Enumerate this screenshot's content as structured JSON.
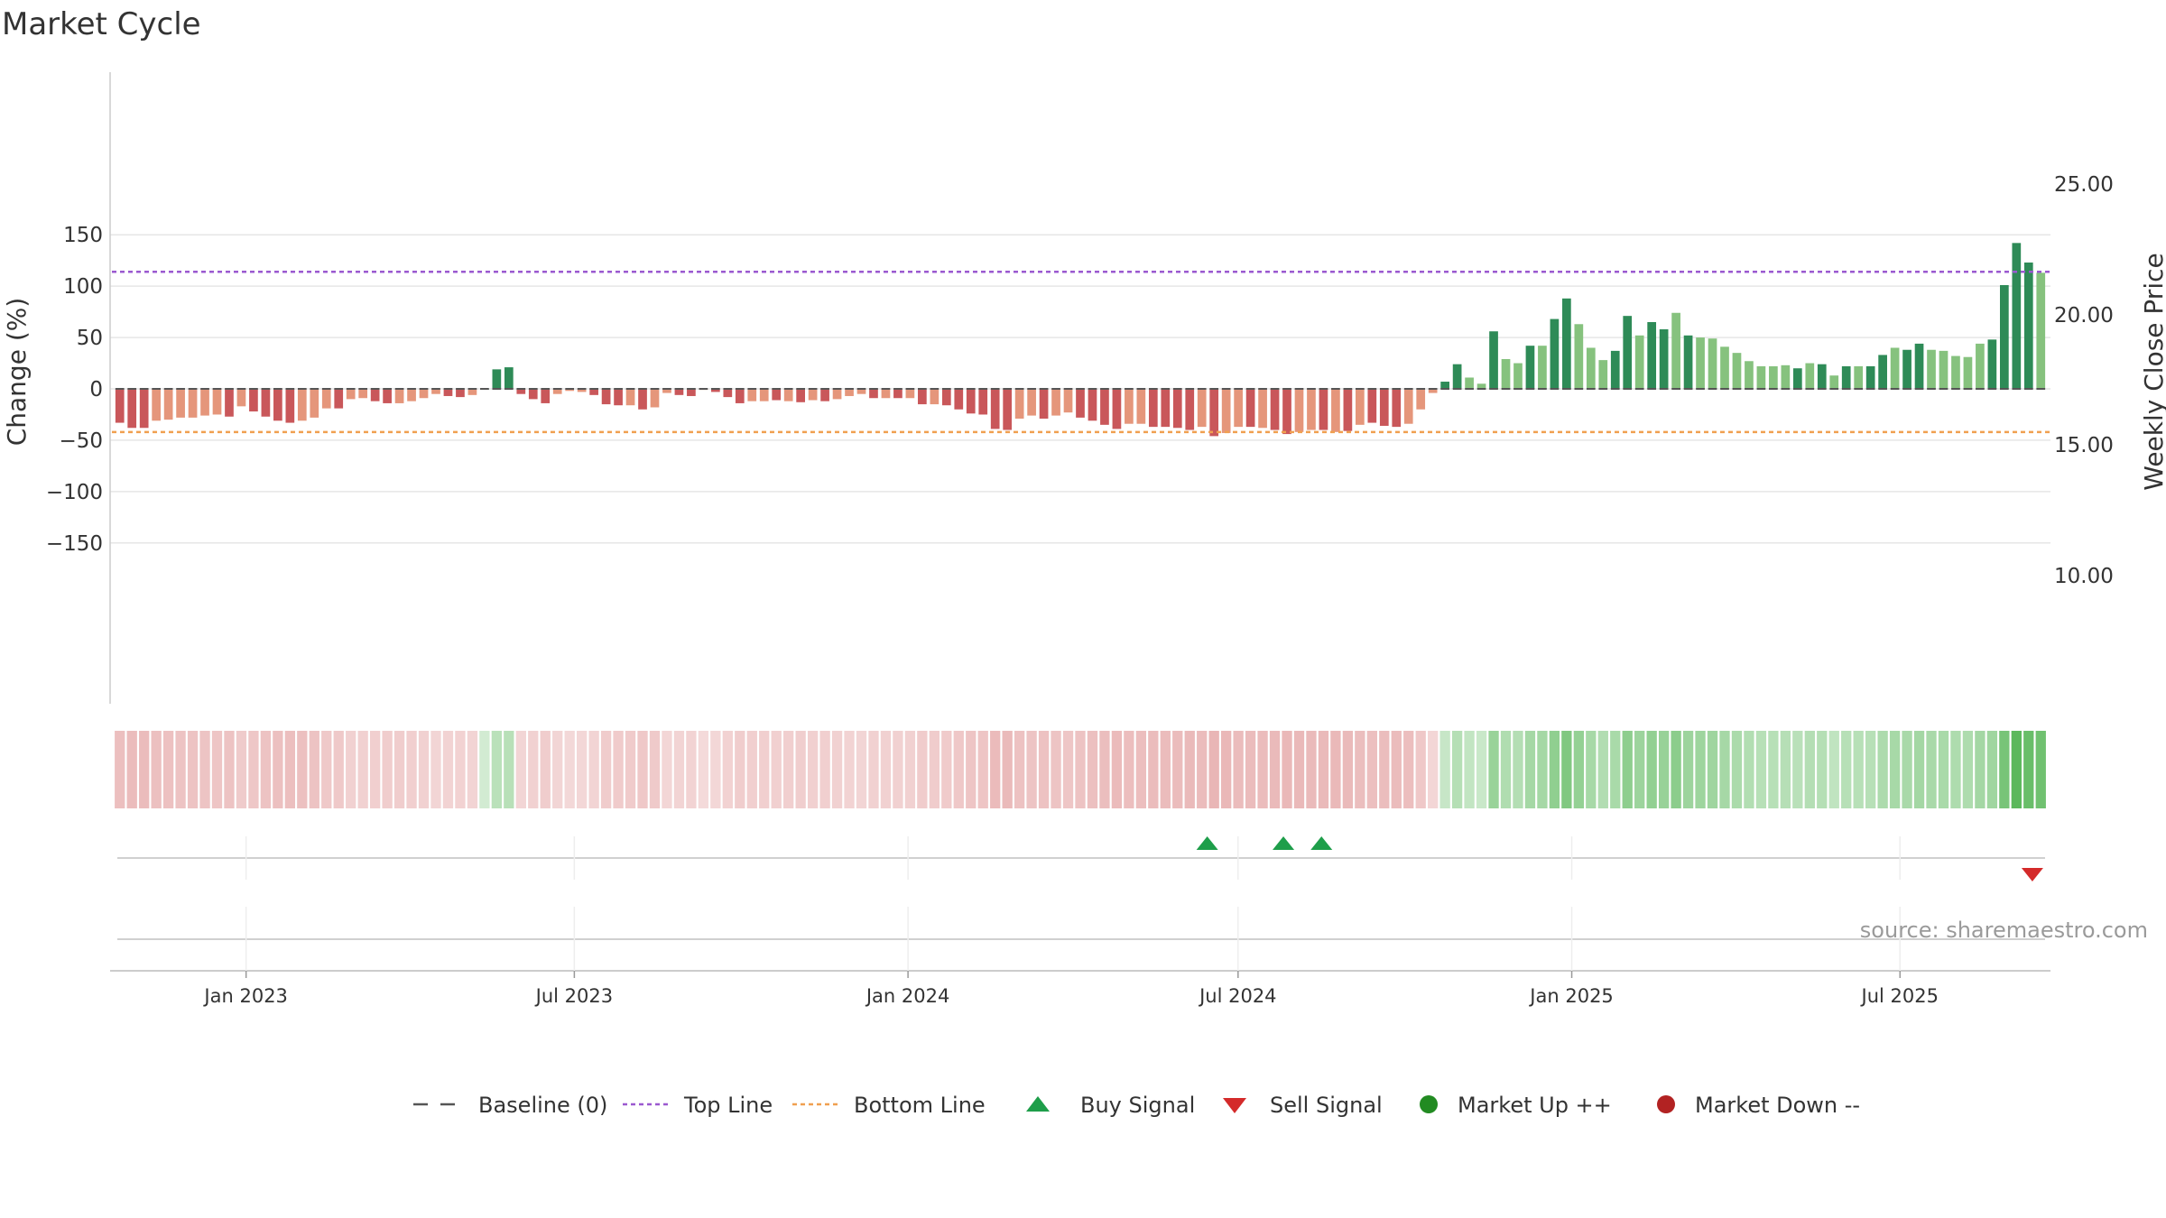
{
  "chart_data": {
    "type": "bar",
    "title": "Market Cycle",
    "ylabel": "Change (%)",
    "y2label": "Weekly Close Price",
    "ylim": [
      -150,
      150
    ],
    "y2ticks": [
      "25.00",
      "20.00",
      "15.00",
      "10.00"
    ],
    "yticks": [
      "150",
      "100",
      "50",
      "0",
      "−50",
      "−100",
      "−150"
    ],
    "top_line": 114,
    "bottom_line": -42,
    "grid": true,
    "x_tick_labels": [
      "Jan 2023",
      "Jul 2023",
      "Jan 2024",
      "Jul 2024",
      "Jan 2025",
      "Jul 2025"
    ],
    "x_start": "2022-10-21",
    "x_end": "2025-09-19",
    "series": [
      {
        "name": "Change (%)",
        "values": [
          -33,
          -38,
          -38,
          -31,
          -30,
          -28,
          -28,
          -26,
          -25,
          -27,
          -17,
          -22,
          -27,
          -31,
          -33,
          -31,
          -28,
          -19,
          -19,
          -10,
          -9,
          -12,
          -14,
          -14,
          -12,
          -9,
          -5,
          -7,
          -8,
          -6,
          0,
          19,
          21,
          -5,
          -10,
          -14,
          -5,
          -2,
          -3,
          -6,
          -15,
          -16,
          -16,
          -20,
          -18,
          -4,
          -6,
          -7,
          -1,
          -3,
          -8,
          -14,
          -12,
          -12,
          -11,
          -12,
          -13,
          -11,
          -12,
          -10,
          -7,
          -5,
          -9,
          -9,
          -9,
          -9,
          -15,
          -15,
          -16,
          -20,
          -24,
          -25,
          -39,
          -40,
          -29,
          -26,
          -29,
          -26,
          -23,
          -28,
          -31,
          -35,
          -39,
          -34,
          -34,
          -37,
          -37,
          -38,
          -40,
          -37,
          -46,
          -43,
          -37,
          -37,
          -38,
          -40,
          -44,
          -42,
          -40,
          -40,
          -42,
          -41,
          -35,
          -33,
          -36,
          -37,
          -34,
          -20,
          -4,
          7,
          24,
          11,
          5,
          56,
          29,
          25,
          42,
          42,
          68,
          88,
          63,
          40,
          28,
          37,
          71,
          52,
          65,
          58,
          74,
          52,
          50,
          49,
          41,
          35,
          27,
          22,
          22,
          23,
          20,
          25,
          24,
          13,
          22,
          22,
          22,
          33,
          40,
          38,
          44,
          38,
          37,
          32,
          31,
          44,
          48,
          101,
          142,
          123,
          113
        ],
        "bar_types": [
          "d",
          "d",
          "d",
          "l",
          "l",
          "l",
          "l",
          "l",
          "l",
          "d",
          "l",
          "d",
          "d",
          "d",
          "d",
          "l",
          "l",
          "l",
          "d",
          "l",
          "l",
          "d",
          "d",
          "l",
          "l",
          "l",
          "l",
          "d",
          "d",
          "l",
          "d",
          "d",
          "d",
          "d",
          "d",
          "d",
          "l",
          "l",
          "l",
          "d",
          "d",
          "d",
          "l",
          "d",
          "l",
          "l",
          "d",
          "d",
          "l",
          "d",
          "d",
          "d",
          "l",
          "l",
          "d",
          "l",
          "d",
          "l",
          "d",
          "l",
          "l",
          "l",
          "d",
          "l",
          "d",
          "l",
          "d",
          "l",
          "d",
          "d",
          "d",
          "d",
          "d",
          "d",
          "l",
          "l",
          "d",
          "l",
          "l",
          "d",
          "d",
          "d",
          "d",
          "l",
          "l",
          "d",
          "d",
          "d",
          "d",
          "l",
          "d",
          "l",
          "l",
          "d",
          "l",
          "d",
          "d",
          "l",
          "l",
          "d",
          "l",
          "d",
          "l",
          "d",
          "d",
          "d",
          "l",
          "l",
          "l",
          "d",
          "d",
          "l",
          "l",
          "d",
          "l",
          "l",
          "d",
          "l",
          "d",
          "d",
          "l",
          "l",
          "l",
          "d",
          "d",
          "l",
          "d",
          "d",
          "l",
          "d",
          "l",
          "l",
          "l",
          "l",
          "l",
          "l",
          "l",
          "l",
          "d",
          "l",
          "d",
          "l",
          "d",
          "l",
          "d",
          "d",
          "l",
          "d",
          "d",
          "l",
          "l",
          "l",
          "l",
          "l",
          "d",
          "d",
          "d",
          "d",
          "l",
          "l"
        ],
        "colors": {
          "neg_dark": "#c9575a",
          "neg_light": "#e5967b",
          "pos_dark": "#2e8b57",
          "pos_light": "#86c27e"
        }
      }
    ],
    "strip_colors": {
      "green": "#5cb85c",
      "red": "#d98080"
    },
    "buy_signals": [
      "2024-06-14",
      "2024-07-26",
      "2024-08-16"
    ],
    "sell_signals": [
      "2025-09-12"
    ],
    "source": "source: sharemaestro.com",
    "legend": [
      {
        "label": "Baseline (0)",
        "marker": "dash",
        "color": "#555555"
      },
      {
        "label": "Top Line",
        "marker": "dotted",
        "color": "#9b59d0"
      },
      {
        "label": "Bottom Line",
        "marker": "dotted",
        "color": "#f0a050"
      },
      {
        "label": "Buy Signal",
        "marker": "triangle-up",
        "color": "#1e9e4a"
      },
      {
        "label": "Sell Signal",
        "marker": "triangle-down",
        "color": "#d42a2a"
      },
      {
        "label": "Market Up ++",
        "marker": "circle",
        "color": "#228b22"
      },
      {
        "label": "Market Down --",
        "marker": "circle",
        "color": "#b22222"
      }
    ],
    "legend_placement": "bottom",
    "colors": {
      "top_line": "#9b59d0",
      "bottom_line": "#f0a050",
      "baseline": "#555555",
      "grid": "#e6e6e6"
    }
  }
}
